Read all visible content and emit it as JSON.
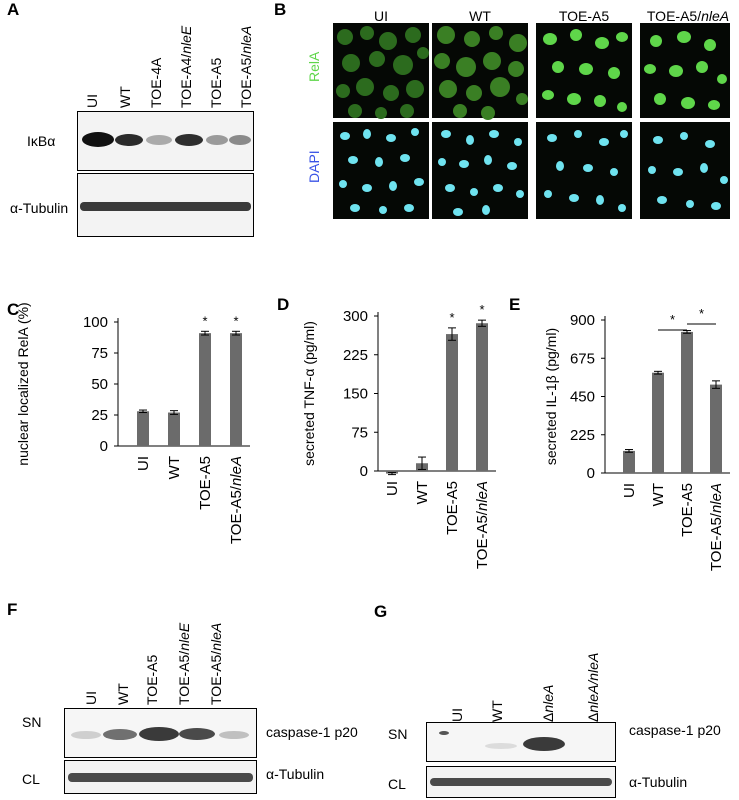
{
  "panels": {
    "A": {
      "letter": "A",
      "lanes": [
        "UI",
        "WT",
        "TOE-4A",
        "TOE-A4/",
        "TOE-A5",
        "TOE-A5/"
      ],
      "lane_suffix": {
        "3": "nleE",
        "5": "nleA"
      },
      "rows": [
        "IκBα",
        "α-Tubulin"
      ]
    },
    "B": {
      "letter": "B",
      "columns": [
        "UI",
        "WT",
        "TOE-A5",
        "TOE-A5/"
      ],
      "col_suffix": "nleA",
      "channels": [
        "RelA",
        "DAPI"
      ],
      "colors": {
        "relA": "#5fd64a",
        "dapi": "#3a53e6",
        "nuclei": "#6fe3f0"
      }
    },
    "C": {
      "letter": "C"
    },
    "D": {
      "letter": "D"
    },
    "E": {
      "letter": "E"
    },
    "F": {
      "letter": "F",
      "lanes": [
        "UI",
        "WT",
        "TOE-A5",
        "TOE-A5/",
        "TOE-A5/"
      ],
      "lane_suffix": {
        "3": "nleE",
        "4": "nleA"
      },
      "rows": [
        "SN",
        "CL"
      ],
      "right_labels": [
        "caspase-1 p20",
        "α-Tubulin"
      ]
    },
    "G": {
      "letter": "G",
      "lanes": [
        "UI",
        "WT",
        "Δ",
        "Δ"
      ],
      "lane_suffix": {
        "2": "nleA",
        "3": "nleA/nleA"
      },
      "rows": [
        "SN",
        "CL"
      ],
      "right_labels": [
        "caspase-1 p20",
        "α-Tubulin"
      ]
    }
  },
  "chart_data": [
    {
      "type": "bar",
      "panel": "C",
      "categories": [
        "UI",
        "WT",
        "TOE-A5",
        "TOE-A5/nleA"
      ],
      "values": [
        28,
        27,
        91,
        91
      ],
      "errors": [
        1,
        1.5,
        1.5,
        1.5
      ],
      "significance": [
        "",
        "",
        "*",
        "*"
      ],
      "ylabel": "nuclear localized RelA (%)",
      "ylim": [
        0,
        100
      ],
      "yticks": [
        0,
        25,
        50,
        75,
        100
      ],
      "bar_color": "#6b6b6b"
    },
    {
      "type": "bar",
      "panel": "D",
      "categories": [
        "UI",
        "WT",
        "TOE-A5",
        "TOE-A5/nleA"
      ],
      "values": [
        -5,
        15,
        265,
        286
      ],
      "errors": [
        2,
        12,
        12,
        6
      ],
      "significance": [
        "",
        "",
        "*",
        "*"
      ],
      "ylabel": "secreted TNF-α (pg/ml)",
      "ylim": [
        0,
        300
      ],
      "yticks": [
        0,
        75,
        150,
        225,
        300
      ],
      "bar_color": "#6b6b6b"
    },
    {
      "type": "bar",
      "panel": "E",
      "categories": [
        "UI",
        "WT",
        "TOE-A5",
        "TOE-A5/nleA"
      ],
      "values": [
        130,
        590,
        830,
        520
      ],
      "errors": [
        8,
        8,
        8,
        22
      ],
      "significance_brackets": [
        {
          "from": 1,
          "to": 2,
          "label": "*"
        },
        {
          "from": 2,
          "to": 3,
          "label": "*"
        }
      ],
      "ylabel": "secreted IL-1β (pg/ml)",
      "ylim": [
        0,
        900
      ],
      "yticks": [
        0,
        225,
        450,
        675,
        900
      ],
      "bar_color": "#6b6b6b"
    }
  ]
}
